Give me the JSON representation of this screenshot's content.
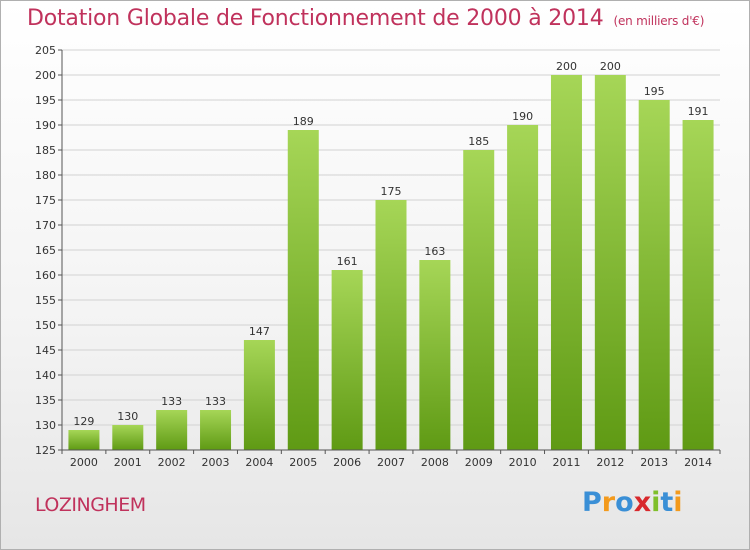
{
  "title": "Dotation Globale de Fonctionnement de 2000 à 2014",
  "subtitle": "(en milliers d'€)",
  "commune": "LOZINGHEM",
  "logo": {
    "letters": [
      "P",
      "r",
      "o",
      "x",
      "i",
      "t",
      "i"
    ],
    "colors": [
      "#3a8fd6",
      "#f39a1c",
      "#3a8fd6",
      "#d8282c",
      "#7fbf2a",
      "#3a8fd6",
      "#f39a1c"
    ]
  },
  "chart_data": {
    "type": "bar",
    "categories": [
      "2000",
      "2001",
      "2002",
      "2003",
      "2004",
      "2005",
      "2006",
      "2007",
      "2008",
      "2009",
      "2010",
      "2011",
      "2012",
      "2013",
      "2014"
    ],
    "values": [
      129,
      130,
      133,
      133,
      147,
      189,
      161,
      175,
      163,
      185,
      190,
      200,
      200,
      195,
      191
    ],
    "title": "Dotation Globale de Fonctionnement de 2000 à 2014",
    "ylim": [
      125,
      205
    ],
    "yticks": [
      125,
      130,
      135,
      140,
      145,
      150,
      155,
      160,
      165,
      170,
      175,
      180,
      185,
      190,
      195,
      200,
      205
    ],
    "grid": true,
    "bar_color_top": "#a6d657",
    "bar_color_bottom": "#5f9a14"
  }
}
